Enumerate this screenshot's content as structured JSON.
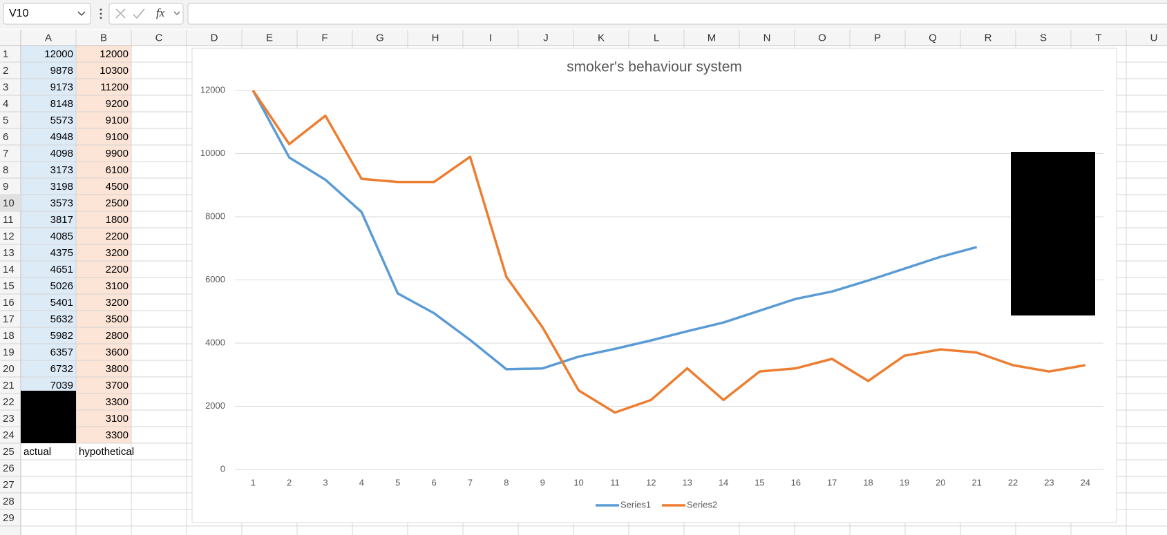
{
  "name_box": "V10",
  "columns": [
    "A",
    "B",
    "C",
    "D",
    "E",
    "F",
    "G",
    "H",
    "I",
    "J",
    "K",
    "L",
    "M",
    "N",
    "O",
    "P",
    "Q",
    "R",
    "S",
    "T",
    "U"
  ],
  "rows": [
    1,
    2,
    3,
    4,
    5,
    6,
    7,
    8,
    9,
    10,
    11,
    12,
    13,
    14,
    15,
    16,
    17,
    18,
    19,
    20,
    21,
    22,
    23,
    24,
    25,
    26,
    27,
    28,
    29
  ],
  "sheet": {
    "A": [
      12000,
      9878,
      9173,
      8148,
      5573,
      4948,
      4098,
      3173,
      3198,
      3573,
      3817,
      4085,
      4375,
      4651,
      5026,
      5401,
      5632,
      5982,
      6357,
      6732,
      7039,
      null,
      null,
      null,
      "actual"
    ],
    "B": [
      12000,
      10300,
      11200,
      9200,
      9100,
      9100,
      9900,
      6100,
      4500,
      2500,
      1800,
      2200,
      3200,
      2200,
      3100,
      3200,
      3500,
      2800,
      3600,
      3800,
      3700,
      3300,
      3100,
      3300,
      "hypothetical"
    ]
  },
  "chart_data": {
    "type": "line",
    "title": "smoker's behaviour system",
    "categories": [
      1,
      2,
      3,
      4,
      5,
      6,
      7,
      8,
      9,
      10,
      11,
      12,
      13,
      14,
      15,
      16,
      17,
      18,
      19,
      20,
      21,
      22,
      23,
      24
    ],
    "series": [
      {
        "name": "Series1",
        "color": "#5b9bd5",
        "values": [
          12000,
          9878,
          9173,
          8148,
          5573,
          4948,
          4098,
          3173,
          3198,
          3573,
          3817,
          4085,
          4375,
          4651,
          5026,
          5401,
          5632,
          5982,
          6357,
          6732,
          7039,
          null,
          null,
          null
        ]
      },
      {
        "name": "Series2",
        "color": "#ed7d31",
        "values": [
          12000,
          10300,
          11200,
          9200,
          9100,
          9100,
          9900,
          6100,
          4500,
          2500,
          1800,
          2200,
          3200,
          2200,
          3100,
          3200,
          3500,
          2800,
          3600,
          3800,
          3700,
          3300,
          3100,
          3300
        ]
      }
    ],
    "ylim": [
      0,
      12000
    ],
    "yticks": [
      0,
      2000,
      4000,
      6000,
      8000,
      10000,
      12000
    ],
    "grid": true,
    "legend": "bottom"
  }
}
